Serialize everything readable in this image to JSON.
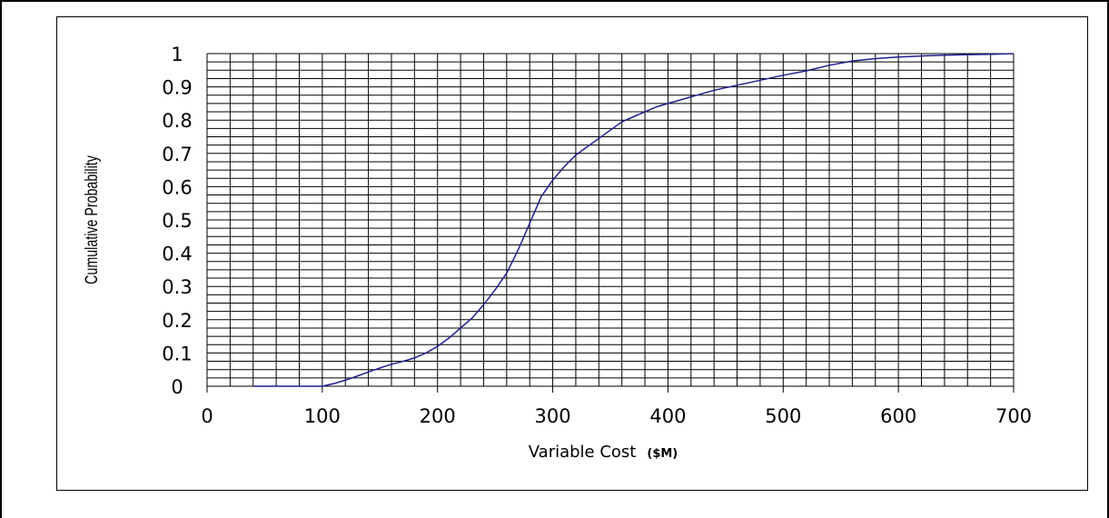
{
  "chart_data": {
    "type": "line",
    "title": "",
    "xlabel": "Variable Cost",
    "xlabel_unit": "($M)",
    "ylabel": "Cumulative Probability",
    "xlim": [
      0,
      700
    ],
    "ylim": [
      0,
      1
    ],
    "x_ticks": [
      "0",
      "100",
      "200",
      "300",
      "400",
      "500",
      "600",
      "700"
    ],
    "y_ticks": [
      "0",
      "0.1",
      "0.2",
      "0.3",
      "0.4",
      "0.5",
      "0.6",
      "0.7",
      "0.8",
      "0.9",
      "1"
    ],
    "grid": true,
    "line_color": "#1f1f8f",
    "series": [
      {
        "x": [
          40,
          100,
          110,
          120,
          130,
          140,
          150,
          160,
          170,
          180,
          190,
          200,
          210,
          220,
          230,
          240,
          250,
          260,
          270,
          275,
          280,
          290,
          300,
          310,
          320,
          330,
          340,
          350,
          360,
          370,
          380,
          390,
          400,
          420,
          440,
          460,
          480,
          500,
          520,
          540,
          560,
          580,
          600,
          620,
          640,
          660,
          680,
          700
        ],
        "y": [
          0,
          0,
          0.008,
          0.018,
          0.03,
          0.043,
          0.055,
          0.066,
          0.075,
          0.085,
          0.1,
          0.12,
          0.145,
          0.175,
          0.205,
          0.245,
          0.29,
          0.34,
          0.41,
          0.45,
          0.49,
          0.57,
          0.62,
          0.66,
          0.695,
          0.72,
          0.745,
          0.77,
          0.795,
          0.81,
          0.825,
          0.84,
          0.85,
          0.87,
          0.89,
          0.905,
          0.92,
          0.935,
          0.948,
          0.965,
          0.978,
          0.985,
          0.99,
          0.993,
          0.995,
          0.997,
          0.998,
          1.0
        ]
      }
    ]
  }
}
